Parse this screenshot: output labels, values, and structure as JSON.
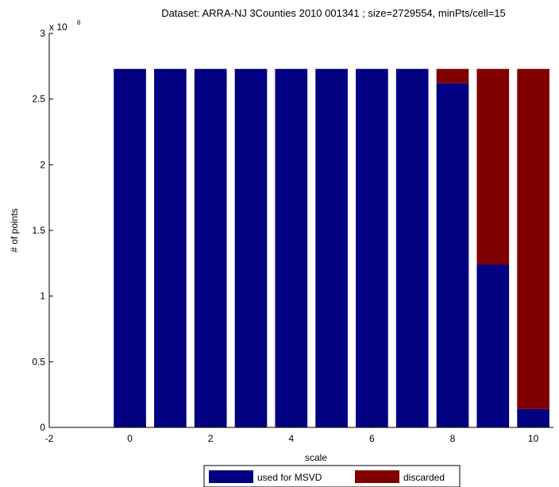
{
  "chart_data": {
    "type": "bar",
    "stacked": true,
    "title": "Dataset: ARRA-NJ 3Counties 2010 001341 ; size=2729554, minPts/cell=15",
    "xlabel": "scale",
    "ylabel": "# of points",
    "y_scale_note": "x 10",
    "y_scale_exponent": "6",
    "xlim": [
      -2,
      10.5
    ],
    "ylim": [
      0,
      3000000
    ],
    "x_ticks": [
      "-2",
      "0",
      "2",
      "4",
      "6",
      "8",
      "10"
    ],
    "y_ticks": [
      "0",
      "0.5",
      "1",
      "1.5",
      "2",
      "2.5",
      "3"
    ],
    "categories": [
      0,
      1,
      2,
      3,
      4,
      5,
      6,
      7,
      8,
      9,
      10
    ],
    "series": [
      {
        "name": "used for MSVD",
        "color": "#000080",
        "values": [
          2729554,
          2729554,
          2729554,
          2729554,
          2729554,
          2729554,
          2729554,
          2729554,
          2620000,
          1240000,
          140000
        ]
      },
      {
        "name": "discarded",
        "color": "#800000",
        "values": [
          0,
          0,
          0,
          0,
          0,
          0,
          0,
          0,
          109554,
          1489554,
          2589554
        ]
      }
    ],
    "grid": false,
    "legend_position": "bottom"
  }
}
